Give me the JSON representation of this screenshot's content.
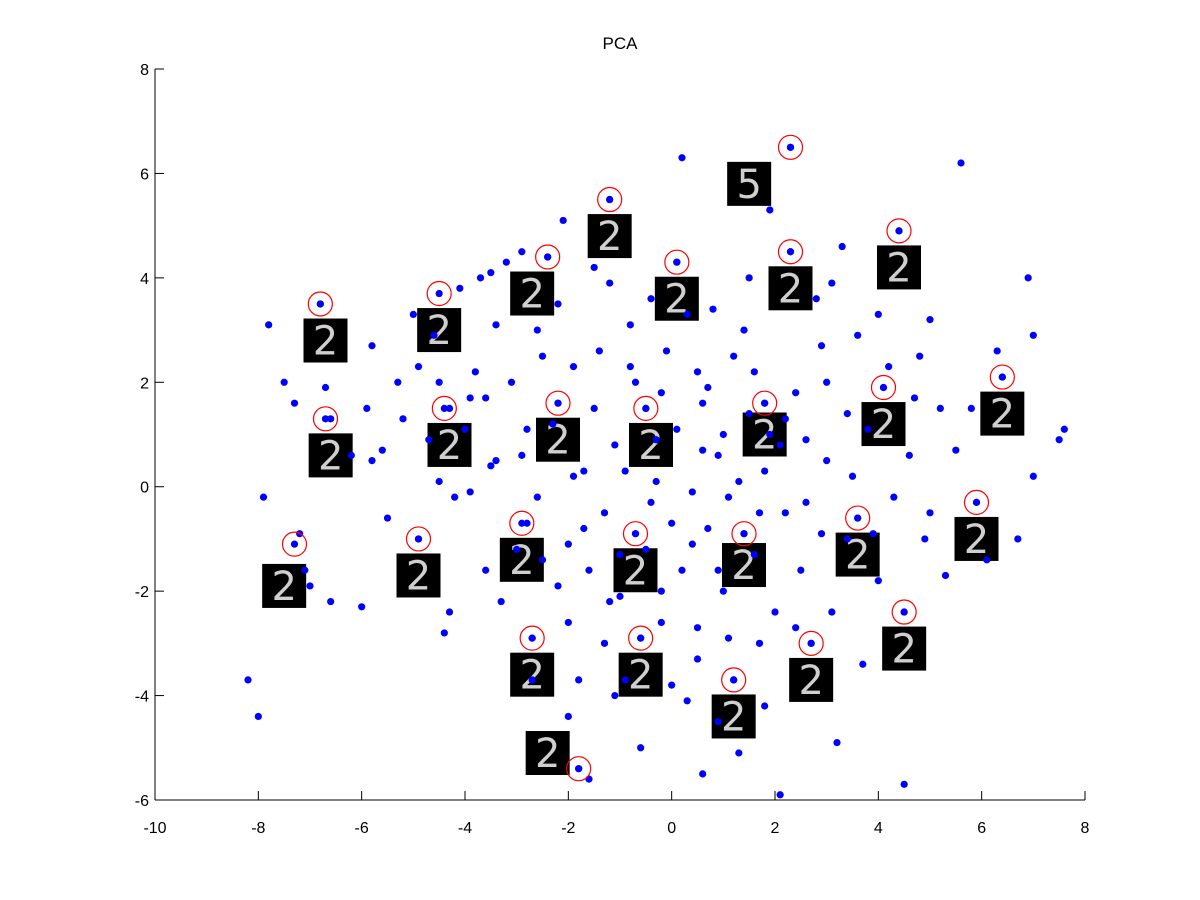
{
  "chart_data": {
    "type": "scatter",
    "title": "PCA",
    "xlabel": "",
    "ylabel": "",
    "xlim": [
      -10,
      8
    ],
    "ylim": [
      -6,
      8
    ],
    "x_ticks": [
      "-10",
      "-8",
      "-6",
      "-4",
      "-2",
      "0",
      "2",
      "4",
      "6",
      "8"
    ],
    "y_ticks": [
      "-6",
      "-4",
      "-2",
      "0",
      "2",
      "4",
      "6",
      "8"
    ],
    "grid": false,
    "legend": "none",
    "colors": {
      "points": "#0000ff",
      "highlight_circles": "#ff0000",
      "thumbnail_bg": "#000000",
      "thumbnail_stroke": "#cfcfcf"
    },
    "series": [
      {
        "points": [
          [
            -8.2,
            -3.7
          ],
          [
            -8.0,
            -4.4
          ],
          [
            -7.8,
            3.1
          ],
          [
            -7.5,
            2.0
          ],
          [
            -7.3,
            1.6
          ],
          [
            -7.2,
            -0.9
          ],
          [
            -7.1,
            -1.6
          ],
          [
            -7.0,
            -1.9
          ],
          [
            -6.8,
            3.5
          ],
          [
            -6.7,
            1.9
          ],
          [
            -6.6,
            1.3
          ],
          [
            -6.6,
            -2.2
          ],
          [
            -6.0,
            -2.3
          ],
          [
            -5.9,
            1.5
          ],
          [
            -5.8,
            0.5
          ],
          [
            -5.6,
            0.7
          ],
          [
            -5.3,
            2.0
          ],
          [
            -5.2,
            1.3
          ],
          [
            -5.0,
            3.3
          ],
          [
            -4.9,
            2.3
          ],
          [
            -4.9,
            -1.0
          ],
          [
            -4.7,
            0.9
          ],
          [
            -4.5,
            0.1
          ],
          [
            -4.5,
            2.0
          ],
          [
            -4.4,
            -2.8
          ],
          [
            -4.3,
            1.5
          ],
          [
            -4.3,
            -2.4
          ],
          [
            -4.2,
            -0.2
          ],
          [
            -4.1,
            3.8
          ],
          [
            -4.0,
            1.1
          ],
          [
            -3.8,
            2.2
          ],
          [
            -3.7,
            4.0
          ],
          [
            -3.6,
            1.7
          ],
          [
            -3.5,
            4.1
          ],
          [
            -3.5,
            0.4
          ],
          [
            -3.4,
            3.1
          ],
          [
            -3.3,
            -2.2
          ],
          [
            -3.2,
            4.3
          ],
          [
            -3.1,
            2.0
          ],
          [
            -3.0,
            -1.2
          ],
          [
            -2.9,
            0.6
          ],
          [
            -2.9,
            4.5
          ],
          [
            -2.8,
            -0.7
          ],
          [
            -2.7,
            -2.9
          ],
          [
            -2.7,
            -3.7
          ],
          [
            -2.6,
            3.0
          ],
          [
            -2.5,
            -1.4
          ],
          [
            -2.5,
            2.5
          ],
          [
            -2.4,
            4.4
          ],
          [
            -2.3,
            1.2
          ],
          [
            -2.2,
            1.6
          ],
          [
            -2.2,
            -1.9
          ],
          [
            -2.1,
            5.1
          ],
          [
            -2.0,
            -2.6
          ],
          [
            -2.0,
            -4.4
          ],
          [
            -1.9,
            2.3
          ],
          [
            -1.8,
            -5.4
          ],
          [
            -1.8,
            -3.7
          ],
          [
            -1.7,
            0.3
          ],
          [
            -1.6,
            -5.6
          ],
          [
            -1.6,
            -1.6
          ],
          [
            -1.5,
            1.5
          ],
          [
            -1.4,
            2.6
          ],
          [
            -1.3,
            -0.5
          ],
          [
            -1.3,
            -3.0
          ],
          [
            -1.2,
            5.5
          ],
          [
            -1.2,
            3.9
          ],
          [
            -1.1,
            0.8
          ],
          [
            -1.0,
            -2.1
          ],
          [
            -0.9,
            -3.7
          ],
          [
            -0.8,
            3.1
          ],
          [
            -0.7,
            -0.9
          ],
          [
            -0.7,
            2.0
          ],
          [
            -0.6,
            -2.9
          ],
          [
            -0.6,
            -5.0
          ],
          [
            -0.5,
            1.5
          ],
          [
            -0.5,
            -1.2
          ],
          [
            -0.4,
            3.6
          ],
          [
            -0.3,
            0.1
          ],
          [
            -0.2,
            -2.0
          ],
          [
            -0.1,
            2.6
          ],
          [
            0.0,
            -0.7
          ],
          [
            0.0,
            -3.8
          ],
          [
            0.1,
            4.3
          ],
          [
            0.1,
            1.1
          ],
          [
            0.2,
            -1.6
          ],
          [
            0.2,
            6.3
          ],
          [
            0.3,
            -4.1
          ],
          [
            0.4,
            -0.1
          ],
          [
            0.5,
            2.2
          ],
          [
            0.5,
            -2.7
          ],
          [
            0.6,
            1.6
          ],
          [
            0.6,
            -5.5
          ],
          [
            0.7,
            -0.8
          ],
          [
            0.8,
            3.4
          ],
          [
            0.9,
            -4.5
          ],
          [
            1.0,
            1.0
          ],
          [
            1.0,
            -2.0
          ],
          [
            1.1,
            -0.2
          ],
          [
            1.2,
            -3.7
          ],
          [
            1.2,
            2.5
          ],
          [
            1.3,
            -5.1
          ],
          [
            1.4,
            -0.9
          ],
          [
            1.5,
            1.4
          ],
          [
            1.5,
            4.0
          ],
          [
            1.6,
            -1.3
          ],
          [
            1.7,
            -3.0
          ],
          [
            1.8,
            1.6
          ],
          [
            1.8,
            0.3
          ],
          [
            1.9,
            5.3
          ],
          [
            2.0,
            -2.4
          ],
          [
            2.1,
            -5.9
          ],
          [
            2.2,
            -0.5
          ],
          [
            2.3,
            6.5
          ],
          [
            2.3,
            4.5
          ],
          [
            2.4,
            1.8
          ],
          [
            2.5,
            -1.6
          ],
          [
            2.6,
            0.9
          ],
          [
            2.7,
            -3.0
          ],
          [
            2.8,
            3.6
          ],
          [
            2.9,
            -0.9
          ],
          [
            3.0,
            2.0
          ],
          [
            3.1,
            -2.4
          ],
          [
            3.2,
            -4.9
          ],
          [
            3.3,
            4.6
          ],
          [
            3.4,
            1.4
          ],
          [
            3.5,
            0.2
          ],
          [
            3.6,
            -0.6
          ],
          [
            3.6,
            2.9
          ],
          [
            3.7,
            -3.4
          ],
          [
            3.8,
            1.1
          ],
          [
            4.0,
            -1.8
          ],
          [
            4.1,
            1.9
          ],
          [
            4.2,
            2.3
          ],
          [
            4.3,
            -0.2
          ],
          [
            4.4,
            4.9
          ],
          [
            4.5,
            -2.4
          ],
          [
            4.5,
            -5.7
          ],
          [
            4.6,
            0.6
          ],
          [
            4.8,
            2.5
          ],
          [
            4.9,
            -1.0
          ],
          [
            5.0,
            3.2
          ],
          [
            5.2,
            1.5
          ],
          [
            5.3,
            -1.7
          ],
          [
            5.5,
            0.7
          ],
          [
            5.6,
            6.2
          ],
          [
            5.8,
            1.5
          ],
          [
            5.9,
            -0.3
          ],
          [
            6.1,
            -1.4
          ],
          [
            6.3,
            2.6
          ],
          [
            6.4,
            2.1
          ],
          [
            6.7,
            -1.0
          ],
          [
            6.9,
            4.0
          ],
          [
            7.0,
            2.9
          ],
          [
            7.0,
            0.2
          ],
          [
            7.5,
            0.9
          ],
          [
            7.6,
            1.1
          ],
          [
            -7.9,
            -0.2
          ],
          [
            -6.2,
            0.6
          ],
          [
            -5.5,
            -0.6
          ],
          [
            -3.9,
            -0.1
          ],
          [
            -3.4,
            0.5
          ],
          [
            -2.8,
            1.1
          ],
          [
            -1.9,
            0.2
          ],
          [
            -1.0,
            -1.3
          ],
          [
            -0.3,
            0.9
          ],
          [
            0.4,
            -1.1
          ],
          [
            0.9,
            0.6
          ],
          [
            1.3,
            0.1
          ],
          [
            1.7,
            -0.5
          ],
          [
            2.1,
            0.8
          ],
          [
            2.6,
            -0.3
          ],
          [
            3.0,
            0.5
          ],
          [
            3.4,
            -1.0
          ],
          [
            0.7,
            1.9
          ],
          [
            -0.9,
            0.3
          ],
          [
            -1.7,
            -0.8
          ],
          [
            -2.6,
            -0.2
          ],
          [
            -3.6,
            -1.6
          ],
          [
            1.4,
            3.0
          ],
          [
            2.9,
            2.7
          ],
          [
            -0.2,
            -2.6
          ],
          [
            1.1,
            -2.9
          ],
          [
            2.4,
            -2.7
          ],
          [
            -1.2,
            -2.2
          ],
          [
            0.6,
            0.7
          ],
          [
            -0.4,
            -0.3
          ],
          [
            1.9,
            1.0
          ],
          [
            3.9,
            -0.9
          ],
          [
            4.7,
            1.7
          ],
          [
            5.0,
            -0.5
          ],
          [
            -4.6,
            2.9
          ],
          [
            -5.8,
            2.7
          ],
          [
            -3.9,
            1.7
          ],
          [
            -2.2,
            3.5
          ],
          [
            -1.5,
            4.2
          ],
          [
            0.3,
            3.3
          ],
          [
            1.6,
            2.2
          ],
          [
            3.1,
            3.9
          ],
          [
            4.0,
            3.3
          ],
          [
            -0.8,
            2.3
          ],
          [
            0.9,
            -1.6
          ],
          [
            -0.2,
            1.8
          ],
          [
            2.2,
            1.3
          ],
          [
            -2.0,
            -1.1
          ],
          [
            0.5,
            -3.3
          ],
          [
            1.8,
            -4.2
          ],
          [
            -1.1,
            -4.0
          ]
        ]
      }
    ],
    "highlighted_points": [
      [
        2.3,
        6.5
      ],
      [
        -1.2,
        5.5
      ],
      [
        -2.4,
        4.4
      ],
      [
        0.1,
        4.3
      ],
      [
        2.3,
        4.5
      ],
      [
        4.4,
        4.9
      ],
      [
        -6.8,
        3.5
      ],
      [
        -4.5,
        3.7
      ],
      [
        -4.4,
        1.5
      ],
      [
        -2.2,
        1.6
      ],
      [
        -0.5,
        1.5
      ],
      [
        1.8,
        1.6
      ],
      [
        4.1,
        1.9
      ],
      [
        6.4,
        2.1
      ],
      [
        -6.7,
        1.3
      ],
      [
        -7.3,
        -1.1
      ],
      [
        -4.9,
        -1.0
      ],
      [
        -2.9,
        -0.7
      ],
      [
        -0.7,
        -0.9
      ],
      [
        1.4,
        -0.9
      ],
      [
        3.6,
        -0.6
      ],
      [
        5.9,
        -0.3
      ],
      [
        -2.7,
        -2.9
      ],
      [
        -0.6,
        -2.9
      ],
      [
        1.2,
        -3.7
      ],
      [
        2.7,
        -3.0
      ],
      [
        4.5,
        -2.4
      ],
      [
        -1.8,
        -5.4
      ]
    ],
    "thumbnails": [
      {
        "x": 1.5,
        "y": 5.8,
        "glyph": "5"
      },
      {
        "x": -1.2,
        "y": 4.8,
        "glyph": "2"
      },
      {
        "x": -2.7,
        "y": 3.7,
        "glyph": "2"
      },
      {
        "x": 0.1,
        "y": 3.6,
        "glyph": "2"
      },
      {
        "x": 2.3,
        "y": 3.8,
        "glyph": "2"
      },
      {
        "x": 4.4,
        "y": 4.2,
        "glyph": "2"
      },
      {
        "x": -6.7,
        "y": 2.8,
        "glyph": "2"
      },
      {
        "x": -4.5,
        "y": 3.0,
        "glyph": "2"
      },
      {
        "x": -6.6,
        "y": 0.6,
        "glyph": "2"
      },
      {
        "x": -4.3,
        "y": 0.8,
        "glyph": "2"
      },
      {
        "x": -2.2,
        "y": 0.9,
        "glyph": "2"
      },
      {
        "x": -0.4,
        "y": 0.8,
        "glyph": "2"
      },
      {
        "x": 1.8,
        "y": 1.0,
        "glyph": "2"
      },
      {
        "x": 4.1,
        "y": 1.2,
        "glyph": "2"
      },
      {
        "x": 6.4,
        "y": 1.4,
        "glyph": "2"
      },
      {
        "x": -7.5,
        "y": -1.9,
        "glyph": "2"
      },
      {
        "x": -4.9,
        "y": -1.7,
        "glyph": "2"
      },
      {
        "x": -2.9,
        "y": -1.4,
        "glyph": "2"
      },
      {
        "x": -0.7,
        "y": -1.6,
        "glyph": "2"
      },
      {
        "x": 1.4,
        "y": -1.5,
        "glyph": "2"
      },
      {
        "x": 3.6,
        "y": -1.3,
        "glyph": "2"
      },
      {
        "x": 5.9,
        "y": -1.0,
        "glyph": "2"
      },
      {
        "x": 4.5,
        "y": -3.1,
        "glyph": "2"
      },
      {
        "x": -2.7,
        "y": -3.6,
        "glyph": "2"
      },
      {
        "x": -0.6,
        "y": -3.6,
        "glyph": "2"
      },
      {
        "x": 2.7,
        "y": -3.7,
        "glyph": "2"
      },
      {
        "x": 1.2,
        "y": -4.4,
        "glyph": "2"
      },
      {
        "x": -2.4,
        "y": -5.1,
        "glyph": "2"
      }
    ]
  }
}
